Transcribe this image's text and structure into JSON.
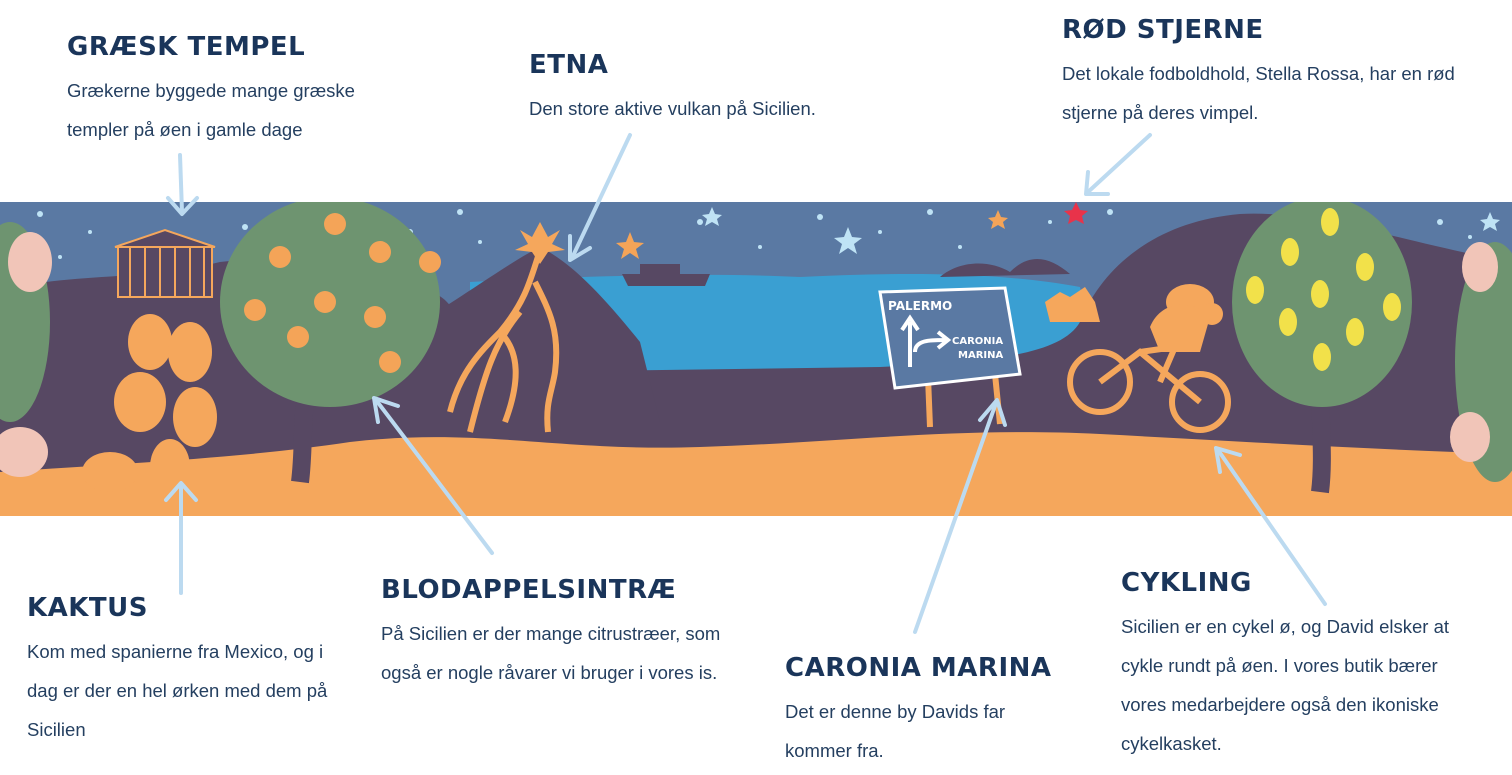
{
  "callouts": {
    "temple": {
      "title": "GRÆSK TEMPEL",
      "text": "Grækerne byggede mange græske templer på øen i gamle dage"
    },
    "etna": {
      "title": "ETNA",
      "text": "Den store aktive vulkan på Sicilien."
    },
    "star": {
      "title": "RØD STJERNE",
      "text": "Det lokale fodboldhold, Stella Rossa, har en rød stjerne på deres vimpel."
    },
    "cactus": {
      "title": "KAKTUS",
      "text": "Kom med spanierne fra Mexico, og i dag er der en hel ørken med dem på Sicilien"
    },
    "orange": {
      "title": "BLODAPPELSINTRÆ",
      "text": "På Sicilien er der mange citrustræer, som også er nogle råvarer vi bruger i vores is."
    },
    "caronia": {
      "title": "CARONIA MARINA",
      "text": "Det er denne by Davids far kommer fra."
    },
    "cycling": {
      "title": "CYKLING",
      "text": "Sicilien er en cykel ø, og David elsker at cykle rundt på øen. I vores butik bærer vores medarbejdere også den ikoniske cykelkasket."
    }
  },
  "sign": {
    "top": "PALERMO",
    "right_line1": "CARONIA",
    "right_line2": "MARINA"
  },
  "colors": {
    "sky": "#5a79a3",
    "sea": "#3a9fd2",
    "land": "#574863",
    "sand": "#f5a75c",
    "tree": "#6e9470",
    "accent": "#f4a458",
    "arrow": "#bcdaf0",
    "text": "#1a355a"
  }
}
